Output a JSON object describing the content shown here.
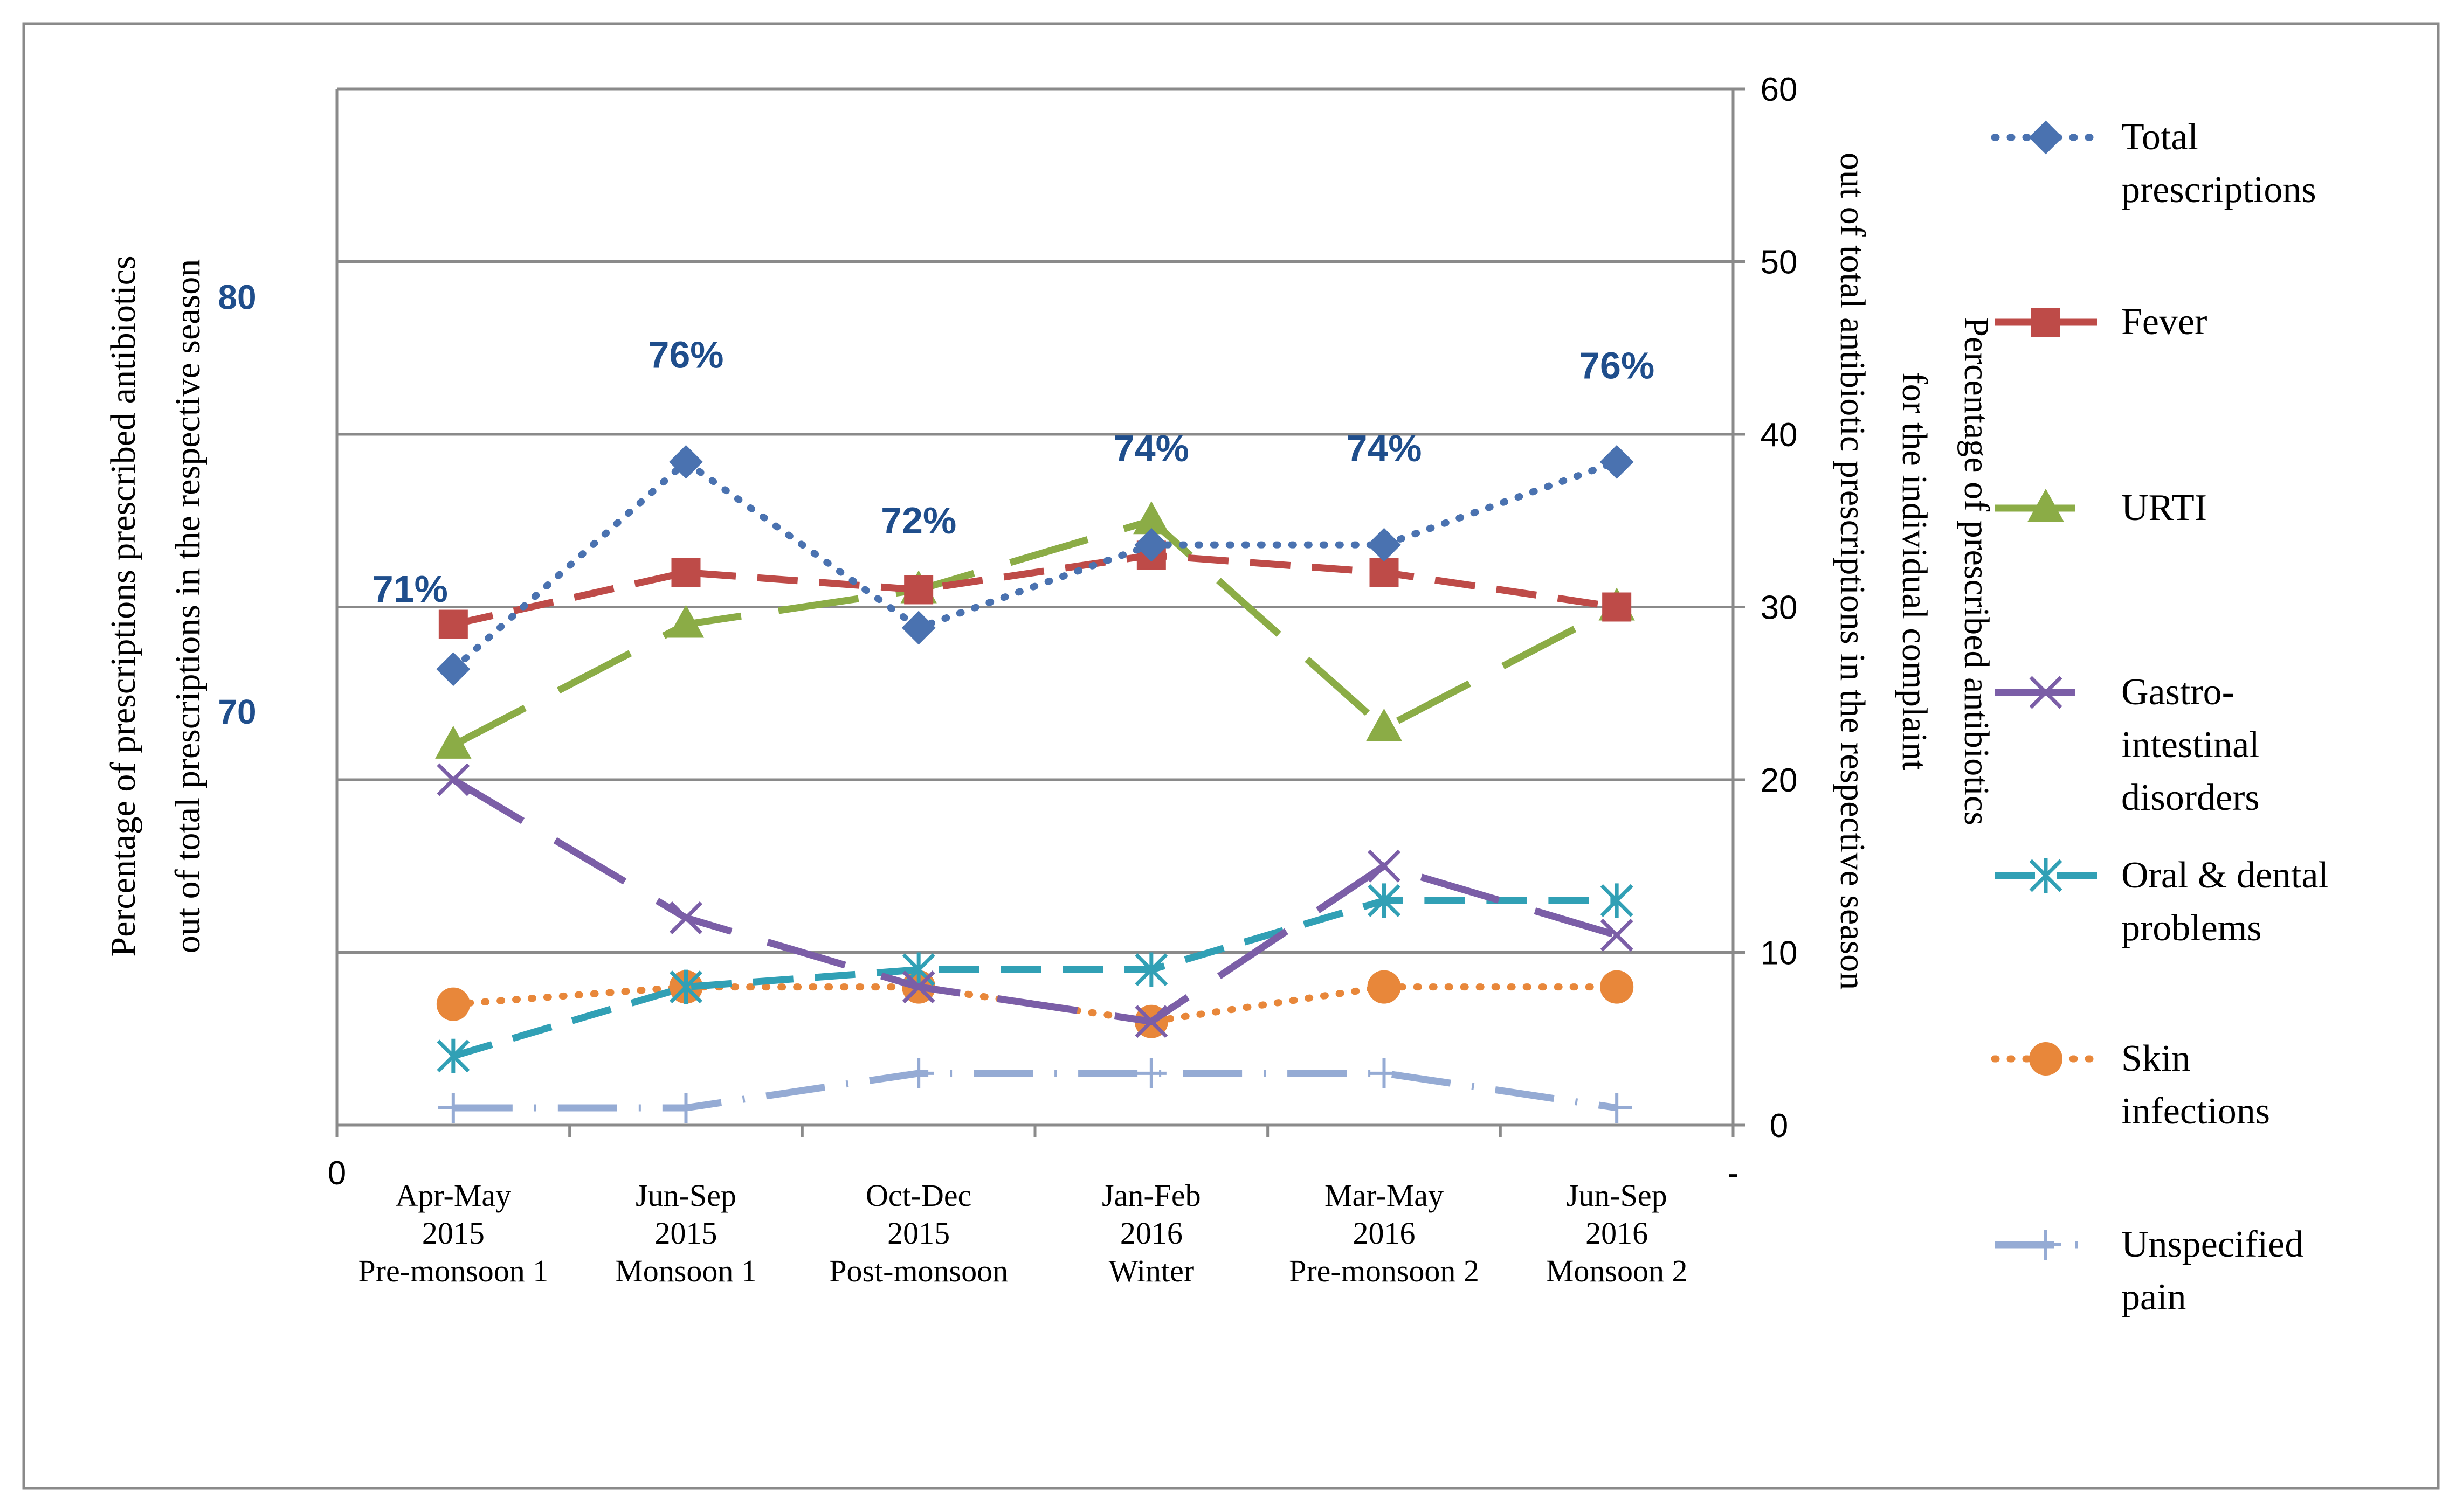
{
  "chart_data": {
    "type": "line",
    "categories": [
      {
        "lines": [
          "Apr-May",
          "2015",
          "Pre-monsoon  1"
        ]
      },
      {
        "lines": [
          "Jun-Sep",
          "2015",
          "Monsoon  1"
        ]
      },
      {
        "lines": [
          "Oct-Dec",
          "2015",
          "Post-monsoon"
        ]
      },
      {
        "lines": [
          "Jan-Feb",
          "2016",
          "Winter"
        ]
      },
      {
        "lines": [
          "Mar-May",
          "2016",
          "Pre-monsoon  2"
        ]
      },
      {
        "lines": [
          "Jun-Sep",
          "2016",
          "Monsoon  2"
        ]
      }
    ],
    "left_axis": {
      "label_lines": [
        "Percentage of prescriptions prescribed antibiotics",
        "out of total prescriptions in the respective season"
      ],
      "ticks": [
        {
          "label": "70",
          "value": 70
        },
        {
          "label": "80",
          "value": 80
        }
      ],
      "range": [
        60,
        85
      ],
      "origin_label": "0",
      "right_end_label": "-"
    },
    "right_axis": {
      "label_lines": [
        "Percentage of  prescribed antibiotics",
        "for the individual complaint",
        "out of total  antibiotic prescriptions in the respective season"
      ],
      "ticks": [
        "0",
        "10",
        "20",
        "30",
        "40",
        "50",
        "60"
      ],
      "range": [
        0,
        60
      ]
    },
    "series": [
      {
        "name": "Total prescriptions",
        "legend_lines": [
          "Total",
          "prescriptions"
        ],
        "axis": "left",
        "color": "#4a72b0",
        "dash": "dot",
        "marker": "diamond",
        "values": [
          71,
          76,
          72,
          74,
          74,
          76
        ],
        "data_labels": [
          "71%",
          "76%",
          "72%",
          "74%",
          "74%",
          "76%"
        ]
      },
      {
        "name": "Fever",
        "legend_lines": [
          "Fever"
        ],
        "axis": "right",
        "color": "#be4b48",
        "dash": "dash",
        "marker": "square",
        "values": [
          29,
          32,
          31,
          33,
          32,
          30
        ]
      },
      {
        "name": "URTI",
        "legend_lines": [
          "URTI"
        ],
        "axis": "right",
        "color": "#8bac46",
        "dash": "longdash",
        "marker": "triangle",
        "values": [
          22,
          29,
          31,
          35,
          23,
          30
        ]
      },
      {
        "name": "Gastro-intestinal disorders",
        "legend_lines": [
          "Gastro-",
          "intestinal",
          "disorders"
        ],
        "axis": "right",
        "color": "#7b5ea7",
        "dash": "longdash",
        "marker": "x",
        "values": [
          20,
          12,
          8,
          6,
          15,
          11
        ]
      },
      {
        "name": "Oral & dental problems",
        "legend_lines": [
          "Oral & dental",
          "problems"
        ],
        "axis": "right",
        "color": "#31a0b5",
        "dash": "dash",
        "marker": "star",
        "values": [
          4,
          8,
          9,
          9,
          13,
          13
        ]
      },
      {
        "name": "Skin infections",
        "legend_lines": [
          "Skin",
          "infections"
        ],
        "axis": "right",
        "color": "#e8873a",
        "dash": "dot",
        "marker": "circle",
        "values": [
          7,
          8,
          8,
          6,
          8,
          8
        ]
      },
      {
        "name": "Unspecified pain",
        "legend_lines": [
          "Unspecified",
          "pain"
        ],
        "axis": "right",
        "color": "#95abd4",
        "dash": "dashdot",
        "marker": "plus",
        "values": [
          1,
          1,
          3,
          3,
          3,
          1
        ]
      }
    ],
    "grid": true,
    "legend": "right"
  }
}
